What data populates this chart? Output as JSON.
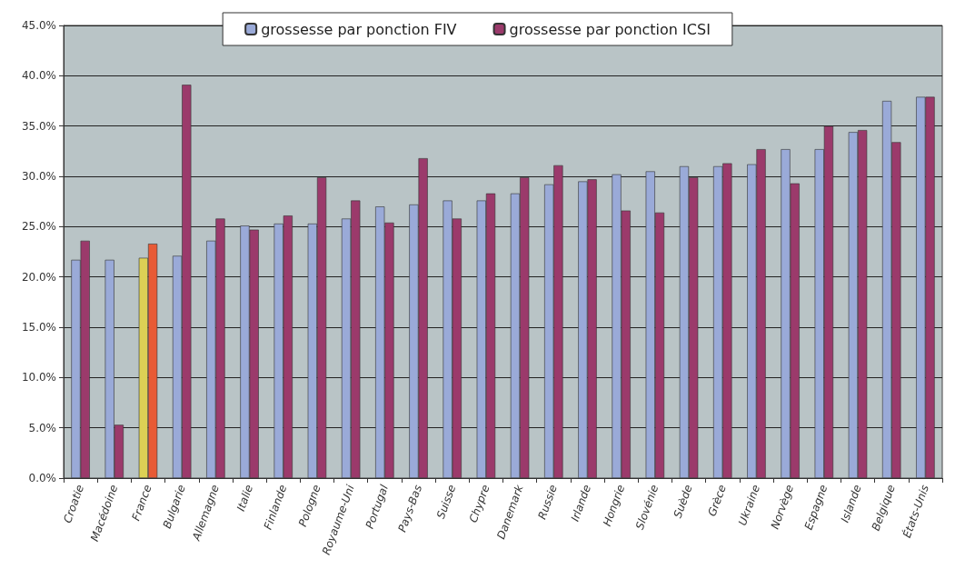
{
  "chart_data": {
    "type": "bar",
    "categories": [
      "Croatie",
      "Macédoine",
      "France",
      "Bulgarie",
      "Allemagne",
      "Italie",
      "Finlande",
      "Pologne",
      "Royaume-Uni",
      "Portugal",
      "Pays-Bas",
      "Suisse",
      "Chypre",
      "Danemark",
      "Russie",
      "Irlande",
      "Hongrie",
      "Slovénie",
      "Suède",
      "Grèce",
      "Ukraine",
      "Norvège",
      "Espagne",
      "Islande",
      "Belgique",
      "États-Unis"
    ],
    "series": [
      {
        "name": "grossesse par ponction FIV",
        "color": "#9aaad8",
        "colors": [
          "#9aaad8",
          "#9aaad8",
          "#ddd055",
          "#9aaad8",
          "#9aaad8",
          "#9aaad8",
          "#9aaad8",
          "#9aaad8",
          "#9aaad8",
          "#9aaad8",
          "#9aaad8",
          "#9aaad8",
          "#9aaad8",
          "#9aaad8",
          "#9aaad8",
          "#9aaad8",
          "#9aaad8",
          "#9aaad8",
          "#9aaad8",
          "#9aaad8",
          "#9aaad8",
          "#9aaad8",
          "#9aaad8",
          "#9aaad8",
          "#9aaad8",
          "#9aaad8"
        ],
        "values": [
          21.7,
          21.7,
          21.9,
          22.1,
          23.6,
          25.1,
          25.3,
          25.3,
          25.8,
          27.0,
          27.2,
          27.6,
          27.6,
          28.3,
          29.2,
          29.5,
          30.2,
          30.5,
          31.0,
          31.0,
          31.2,
          32.7,
          32.7,
          34.4,
          37.5,
          37.9
        ]
      },
      {
        "name": "grossesse par ponction ICSI",
        "color": "#9b3a6b",
        "colors": [
          "#9b3a6b",
          "#9b3a6b",
          "#e85a35",
          "#9b3a6b",
          "#9b3a6b",
          "#9b3a6b",
          "#9b3a6b",
          "#9b3a6b",
          "#9b3a6b",
          "#9b3a6b",
          "#9b3a6b",
          "#9b3a6b",
          "#9b3a6b",
          "#9b3a6b",
          "#9b3a6b",
          "#9b3a6b",
          "#9b3a6b",
          "#9b3a6b",
          "#9b3a6b",
          "#9b3a6b",
          "#9b3a6b",
          "#9b3a6b",
          "#9b3a6b",
          "#9b3a6b",
          "#9b3a6b",
          "#9b3a6b"
        ],
        "values": [
          23.6,
          5.3,
          23.3,
          39.1,
          25.8,
          24.7,
          26.1,
          29.9,
          27.6,
          25.4,
          31.8,
          25.8,
          28.3,
          29.9,
          31.1,
          29.7,
          26.6,
          26.4,
          29.9,
          31.3,
          32.7,
          29.3,
          35.0,
          34.6,
          33.4,
          37.9
        ]
      }
    ],
    "ylim": [
      0,
      45
    ],
    "yticks": [
      {
        "value": 0,
        "label": "0.0%"
      },
      {
        "value": 5,
        "label": "5.0%"
      },
      {
        "value": 10,
        "label": "10.0%"
      },
      {
        "value": 15,
        "label": "15.0%"
      },
      {
        "value": 20,
        "label": "20.0%"
      },
      {
        "value": 25,
        "label": "25.0%"
      },
      {
        "value": 30,
        "label": "30.0%"
      },
      {
        "value": 35,
        "label": "35.0%"
      },
      {
        "value": 40,
        "label": "40.0%"
      },
      {
        "value": 45,
        "label": "45.0%"
      }
    ],
    "grid": "y",
    "legend": "top"
  }
}
